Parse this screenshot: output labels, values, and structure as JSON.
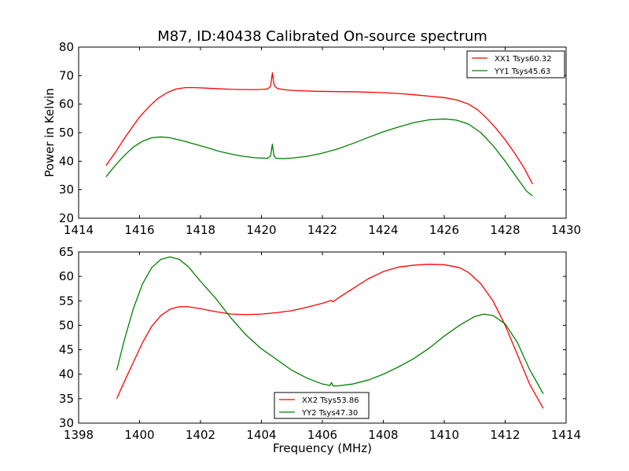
{
  "chart_data": [
    {
      "type": "line",
      "title": "M87, ID:40438 Calibrated On-source spectrum",
      "xlabel": "",
      "ylabel": "Power in Kelvin",
      "xlim": [
        1414,
        1430
      ],
      "ylim": [
        20,
        80
      ],
      "xticks": [
        1414,
        1416,
        1418,
        1420,
        1422,
        1424,
        1426,
        1428,
        1430
      ],
      "yticks": [
        20,
        30,
        40,
        50,
        60,
        70,
        80
      ],
      "legend_position": "top-right",
      "series": [
        {
          "name": "XX1 Tsys60.32",
          "color": "#ff0000",
          "x": [
            1414.9,
            1415.2,
            1415.5,
            1415.8,
            1416.0,
            1416.3,
            1416.6,
            1416.9,
            1417.2,
            1417.5,
            1417.8,
            1418.2,
            1418.6,
            1419.0,
            1419.5,
            1419.9,
            1420.2,
            1420.3,
            1420.36,
            1420.41,
            1420.46,
            1420.55,
            1420.8,
            1421.2,
            1421.8,
            1422.5,
            1423.2,
            1423.8,
            1424.4,
            1425.0,
            1425.5,
            1426.0,
            1426.4,
            1426.8,
            1427.1,
            1427.4,
            1427.7,
            1428.0,
            1428.3,
            1428.6,
            1428.9
          ],
          "values": [
            38.5,
            43,
            48,
            52.5,
            55.5,
            59,
            62,
            64,
            65.3,
            65.8,
            65.8,
            65.6,
            65.4,
            65.2,
            65.1,
            65.1,
            65.3,
            66.2,
            71,
            67,
            66,
            65.4,
            65,
            64.7,
            64.5,
            64.4,
            64.3,
            64.1,
            63.8,
            63.3,
            62.8,
            62.3,
            61.5,
            60,
            58,
            55,
            51.5,
            47.5,
            43,
            38,
            32
          ]
        },
        {
          "name": "YY1 Tsys45.63",
          "color": "#008000",
          "x": [
            1414.9,
            1415.2,
            1415.5,
            1415.8,
            1416.1,
            1416.4,
            1416.7,
            1417.0,
            1417.4,
            1417.8,
            1418.2,
            1418.6,
            1419.0,
            1419.4,
            1419.8,
            1420.2,
            1420.3,
            1420.36,
            1420.41,
            1420.48,
            1420.7,
            1421.0,
            1421.5,
            1422.0,
            1422.5,
            1423.0,
            1423.5,
            1424.0,
            1424.5,
            1425.0,
            1425.5,
            1426.0,
            1426.4,
            1426.8,
            1427.2,
            1427.6,
            1428.0,
            1428.4,
            1428.7,
            1428.9
          ],
          "values": [
            34.5,
            38.5,
            42,
            45,
            47,
            48.2,
            48.5,
            48.2,
            47.2,
            46,
            44.8,
            43.5,
            42.5,
            41.7,
            41.2,
            41,
            41.8,
            46,
            42,
            41,
            40.9,
            41.1,
            41.7,
            42.8,
            44.3,
            46.2,
            48.3,
            50.3,
            52,
            53.5,
            54.5,
            54.8,
            54.4,
            53,
            50,
            45.5,
            40,
            34,
            29.5,
            27.8
          ]
        }
      ]
    },
    {
      "type": "line",
      "title": "",
      "xlabel": "Frequency (MHz)",
      "ylabel": "",
      "xlim": [
        1398,
        1414
      ],
      "ylim": [
        30,
        65
      ],
      "xticks": [
        1398,
        1400,
        1402,
        1404,
        1406,
        1408,
        1410,
        1412,
        1414
      ],
      "yticks": [
        30,
        35,
        40,
        45,
        50,
        55,
        60,
        65
      ],
      "legend_position": "lower-center",
      "series": [
        {
          "name": "XX2 Tsys53.86",
          "color": "#ff0000",
          "x": [
            1399.25,
            1399.5,
            1399.8,
            1400.1,
            1400.4,
            1400.7,
            1401.0,
            1401.3,
            1401.6,
            1402.0,
            1402.5,
            1403.0,
            1403.5,
            1404.0,
            1404.5,
            1405.0,
            1405.5,
            1406.0,
            1406.3,
            1406.35,
            1406.5,
            1407.0,
            1407.5,
            1408.0,
            1408.5,
            1409.0,
            1409.5,
            1410.0,
            1410.5,
            1410.8,
            1411.2,
            1411.6,
            1412.0,
            1412.4,
            1412.8,
            1413.25
          ],
          "values": [
            35,
            38.5,
            42.5,
            46.5,
            49.8,
            52,
            53.3,
            53.8,
            53.8,
            53.4,
            52.8,
            52.3,
            52.2,
            52.3,
            52.6,
            53,
            53.7,
            54.5,
            55.1,
            54.8,
            55.5,
            57.5,
            59.5,
            61,
            61.9,
            62.3,
            62.5,
            62.4,
            61.8,
            60.8,
            58.5,
            55,
            50,
            44,
            38,
            33
          ]
        },
        {
          "name": "YY2 Tsys47.30",
          "color": "#008000",
          "x": [
            1399.25,
            1399.5,
            1399.8,
            1400.1,
            1400.4,
            1400.7,
            1401.0,
            1401.3,
            1401.6,
            1402.0,
            1402.5,
            1403.0,
            1403.5,
            1404.0,
            1404.5,
            1405.0,
            1405.5,
            1406.0,
            1406.25,
            1406.3,
            1406.35,
            1406.5,
            1407.0,
            1407.5,
            1408.0,
            1408.5,
            1409.0,
            1409.5,
            1410.0,
            1410.5,
            1411.0,
            1411.3,
            1411.6,
            1412.0,
            1412.4,
            1412.8,
            1413.25
          ],
          "values": [
            40.8,
            47,
            53.5,
            58.5,
            61.8,
            63.5,
            64,
            63.5,
            62,
            59,
            55.5,
            51.5,
            48,
            45.2,
            43,
            40.8,
            39.2,
            38,
            37.7,
            38.3,
            37.6,
            37.6,
            38,
            38.8,
            40,
            41.5,
            43.2,
            45.3,
            47.8,
            50,
            51.8,
            52.3,
            52,
            50.3,
            46.5,
            41,
            36
          ]
        }
      ]
    }
  ]
}
